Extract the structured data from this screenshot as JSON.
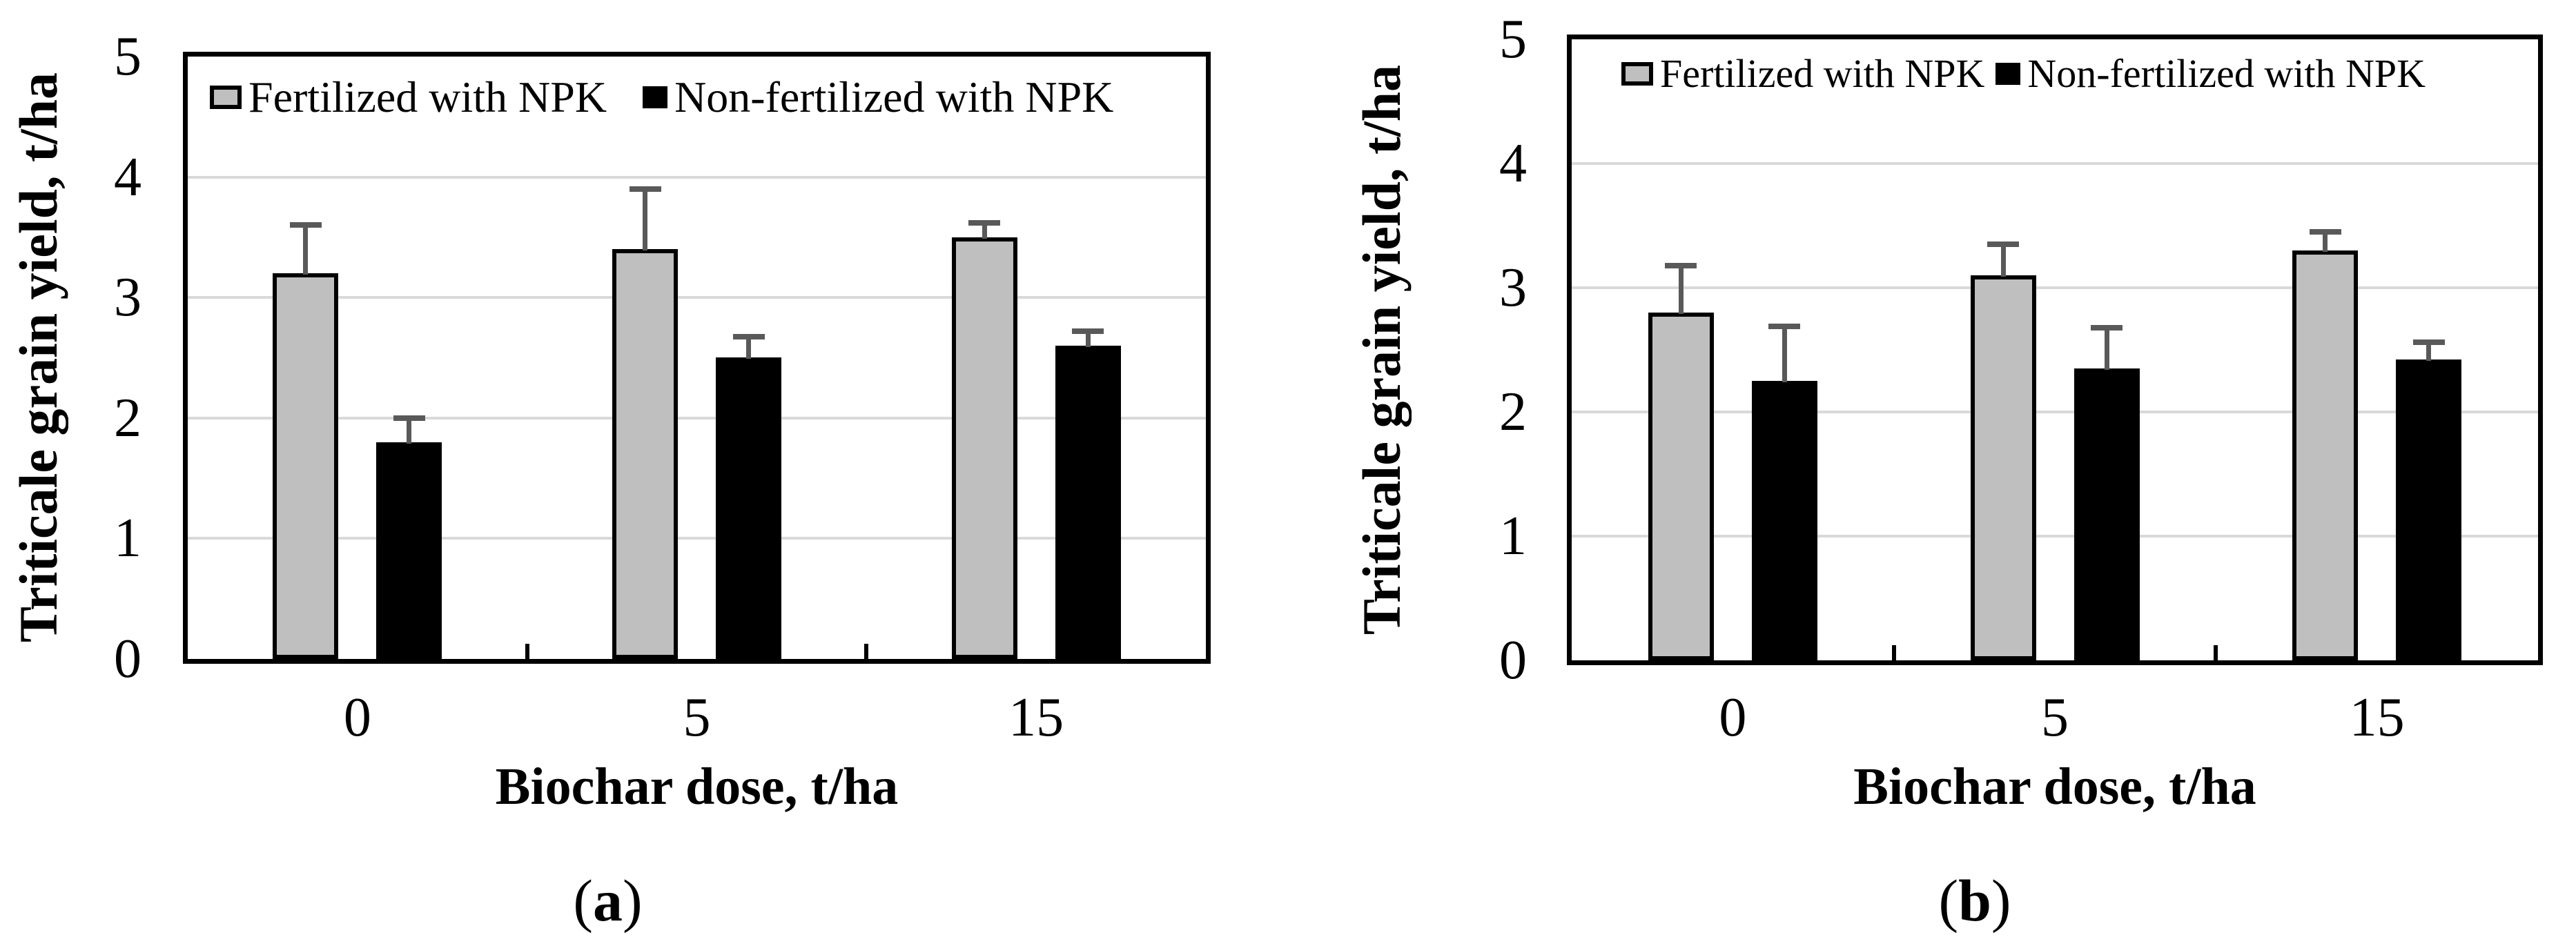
{
  "figure": {
    "description": "Two-panel grouped bar chart of triticale grain yield vs biochar dose",
    "panel_count": 2
  },
  "colors": {
    "fertilized_bar": "#bfbfbf",
    "non_fertilized_bar": "#000000",
    "bar_outline": "#000000",
    "error_bar": "#595959",
    "gridline": "#d9d9d9",
    "frame": "#000000",
    "background": "#ffffff"
  },
  "chart_data": [
    {
      "type": "bar",
      "panel": "a",
      "caption": {
        "prefix": "(",
        "letter": "a",
        "suffix": ")"
      },
      "ylabel": "Triticale grain yield, t/ha",
      "xlabel": "Biochar dose, t/ha",
      "categories": [
        "0",
        "5",
        "15"
      ],
      "ylim": [
        0,
        5
      ],
      "yticks": [
        0,
        1,
        2,
        3,
        4,
        5
      ],
      "gridline_values": [
        1,
        2,
        3,
        4
      ],
      "grid": true,
      "legend_position": "top-inside",
      "series": [
        {
          "key": "fertilized",
          "name": "Fertilized with NPK",
          "color": "#bfbfbf",
          "values": [
            3.2,
            3.4,
            3.5
          ],
          "error_plus": [
            0.4,
            0.5,
            0.12
          ]
        },
        {
          "key": "non-fertilized",
          "name": "Non-fertilized with NPK",
          "color": "#000000",
          "values": [
            1.8,
            2.5,
            2.6
          ],
          "error_plus": [
            0.2,
            0.17,
            0.12
          ]
        }
      ]
    },
    {
      "type": "bar",
      "panel": "b",
      "caption": {
        "prefix": "(",
        "letter": "b",
        "suffix": ")"
      },
      "ylabel": "Triticale grain yield, t/ha",
      "xlabel": "Biochar dose, t/ha",
      "categories": [
        "0",
        "5",
        "15"
      ],
      "ylim": [
        0,
        5
      ],
      "yticks": [
        0,
        1,
        2,
        3,
        4,
        5
      ],
      "gridline_values": [
        1,
        2,
        3,
        4
      ],
      "grid": true,
      "legend_position": "top-inside",
      "series": [
        {
          "key": "fertilized",
          "name": "Fertilized with NPK",
          "color": "#bfbfbf",
          "values": [
            2.8,
            3.1,
            3.3
          ],
          "error_plus": [
            0.38,
            0.25,
            0.15
          ]
        },
        {
          "key": "non-fertilized",
          "name": "Non-fertilized with NPK",
          "color": "#000000",
          "values": [
            2.25,
            2.35,
            2.42
          ],
          "error_plus": [
            0.44,
            0.33,
            0.14
          ]
        }
      ]
    }
  ]
}
